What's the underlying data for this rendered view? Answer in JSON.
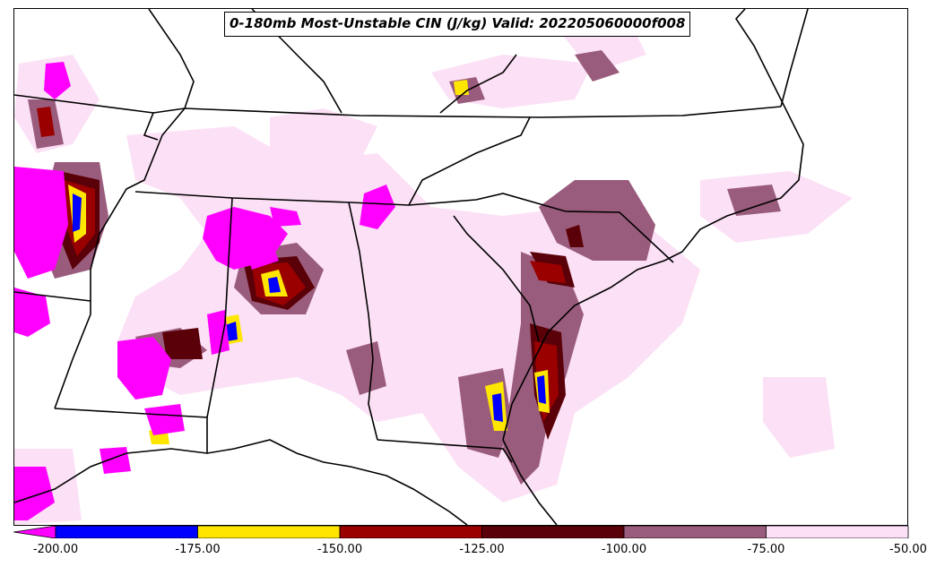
{
  "title": "0-180mb Most-Unstable CIN (J/kg) Valid: 202205060000f008",
  "colorbar": {
    "bins": [
      {
        "label": "-200.00",
        "color": "#ff00ff"
      },
      {
        "label": "-175.00",
        "color": "#0000ff"
      },
      {
        "label": "-150.00",
        "color": "#ffe600"
      },
      {
        "label": "-125.00",
        "color": "#9a0000"
      },
      {
        "label": "-100.00",
        "color": "#5a0008"
      },
      {
        "label": "-75.00",
        "color": "#9a5c7c"
      },
      {
        "label": "-50.00",
        "color": "#fce0f6"
      }
    ],
    "ticks": [
      "-200.00",
      "-175.00",
      "-150.00",
      "-125.00",
      "-100.00",
      "-75.00",
      "-50.00"
    ]
  },
  "colors": {
    "lt_pink": "#fce0f6",
    "mauve": "#9a5c7c",
    "dk_red": "#5a0008",
    "red": "#9a0000",
    "yellow": "#ffe600",
    "blue": "#0000ff",
    "magenta": "#ff00ff"
  }
}
